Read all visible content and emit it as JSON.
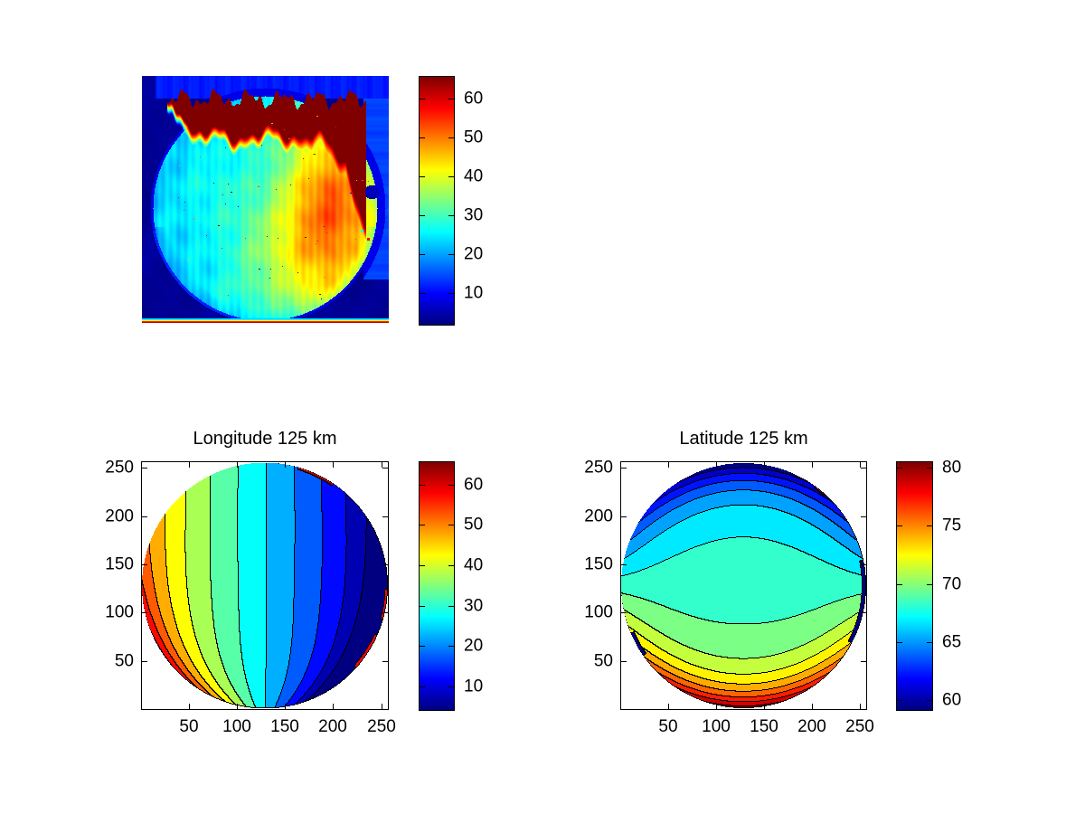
{
  "figure": {
    "background": "#ffffff",
    "text_color": "#000000",
    "colormap": "jet"
  },
  "chart_data": [
    {
      "type": "image",
      "panel": "top-left",
      "title": "",
      "axes_visible": false,
      "colormap": "jet",
      "clim": [
        2,
        65.5
      ],
      "colorbar_ticks": [
        10,
        20,
        30,
        40,
        50,
        60
      ],
      "scene": {
        "background_value": 3.2,
        "top_band_value": 11.5,
        "right_strip_value": 14,
        "fov_ring_value": 8.5,
        "interior_value": 22,
        "hot_blob_value": 68,
        "warm_band_peak_value": 45,
        "bottom_stripe_values": [
          62,
          55,
          42,
          26,
          23
        ],
        "dark_patch_value": 5.5,
        "red_speck_value": 58,
        "speckle_count": 90
      }
    },
    {
      "type": "filled_contour",
      "panel": "bottom-left",
      "title": "Longitude 125 km",
      "x_ticks": [
        50,
        100,
        150,
        200,
        250
      ],
      "y_ticks": [
        50,
        100,
        150,
        200,
        250
      ],
      "axis_range": [
        1,
        256
      ],
      "clim": [
        4.4,
        65.5
      ],
      "levels": {
        "start": 5,
        "step": 5,
        "end": 65
      },
      "colorbar_ticks": [
        10,
        20,
        30,
        40,
        50,
        60
      ],
      "field": {
        "kind": "longitude",
        "lon0": 25.3,
        "lat0": 68.3,
        "amp_lon": 11.27,
        "amp_lat": 10.9,
        "asym": 0.095,
        "lon_profile": {
          "c1": 0.72,
          "c2": 0.28,
          "p2": 5
        },
        "lat_profile": {
          "c1": 0.15,
          "c2": 0.33,
          "p2": 3,
          "c3": 0.52,
          "p3": 6
        }
      },
      "rim_overrides": [
        {
          "from_deg": 56,
          "to_deg": 74,
          "value": 62,
          "depth": 0.022
        },
        {
          "from_deg": -16,
          "to_deg": -2,
          "value": 56,
          "depth": 0.018
        },
        {
          "from_deg": -42,
          "to_deg": -24,
          "value": 58,
          "depth": 0.022
        }
      ]
    },
    {
      "type": "filled_contour",
      "panel": "bottom-right",
      "title": "Latitude 125 km",
      "x_ticks": [
        50,
        100,
        150,
        200,
        250
      ],
      "y_ticks": [
        50,
        100,
        150,
        200,
        250
      ],
      "axis_range": [
        1,
        256
      ],
      "clim": [
        59.2,
        80.5
      ],
      "levels": {
        "start": 60,
        "step": 1.5,
        "end": 79.5
      },
      "colorbar_ticks": [
        60,
        65,
        70,
        75,
        80
      ],
      "field": {
        "kind": "latitude",
        "lon0": 25.3,
        "lat0": 68.3,
        "amp_lon": 11.27,
        "amp_lat": 10.9,
        "asym": 0.095,
        "lon_profile": {
          "c1": 0.72,
          "c2": 0.28,
          "p2": 5
        },
        "lat_profile": {
          "c1": 0.15,
          "c2": 0.33,
          "p2": 3,
          "c3": 0.52,
          "p3": 6
        }
      },
      "rim_overrides": [
        {
          "from_deg": -28,
          "to_deg": 12,
          "value": 59.3,
          "depth": 0.03
        },
        {
          "from_deg": 203,
          "to_deg": 215,
          "value": 59.3,
          "depth": 0.03
        },
        {
          "from_deg": 48,
          "to_deg": 54,
          "value": 80.4,
          "depth": 0.015
        }
      ]
    }
  ]
}
